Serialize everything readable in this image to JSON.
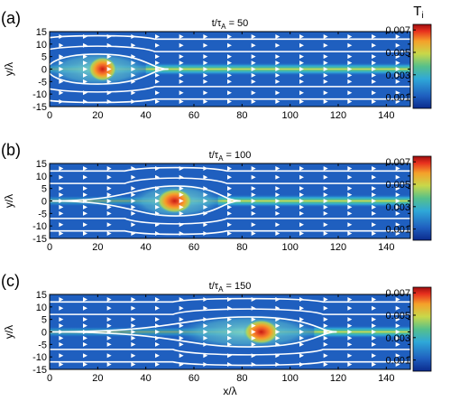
{
  "chart_data": [
    {
      "type": "heatmap",
      "panel_label": "(a)",
      "title_prefix": "t/",
      "title_tau": "τ",
      "title_sub": "A",
      "title_suffix": " = 50",
      "xlabel": "",
      "ylabel": "y/λ",
      "xlim": [
        0,
        150
      ],
      "ylim": [
        -15,
        15
      ],
      "xticks": [
        0,
        20,
        40,
        60,
        80,
        100,
        120,
        140
      ],
      "yticks": [
        15,
        10,
        5,
        0,
        -5,
        -10,
        -15
      ],
      "hot_spot": {
        "x": 22,
        "y": 0,
        "peak_Ti": 0.0065
      },
      "island_extent_x": [
        0,
        40
      ],
      "colorbar": {
        "label": "T",
        "label_sub": "i",
        "ticks": [
          "0.007",
          "0.005",
          "0.003",
          "0.001"
        ],
        "range": [
          0,
          0.0075
        ]
      }
    },
    {
      "type": "heatmap",
      "panel_label": "(b)",
      "title_prefix": "t/",
      "title_tau": "τ",
      "title_sub": "A",
      "title_suffix": " = 100",
      "xlabel": "",
      "ylabel": "y/λ",
      "xlim": [
        0,
        150
      ],
      "ylim": [
        -15,
        15
      ],
      "xticks": [
        0,
        20,
        40,
        60,
        80,
        100,
        120,
        140
      ],
      "yticks": [
        15,
        10,
        5,
        0,
        -5,
        -10,
        -15
      ],
      "hot_spot": {
        "x": 52,
        "y": 0,
        "peak_Ti": 0.007
      },
      "island_extent_x": [
        35,
        70
      ],
      "colorbar": {
        "label": "",
        "label_sub": "",
        "ticks": [
          "0.007",
          "0.005",
          "0.003",
          "0.001"
        ],
        "range": [
          0,
          0.0075
        ]
      }
    },
    {
      "type": "heatmap",
      "panel_label": "(c)",
      "title_prefix": "t/",
      "title_tau": "τ",
      "title_sub": "A",
      "title_suffix": " = 150",
      "xlabel": "x/λ",
      "ylabel": "y/λ",
      "xlim": [
        0,
        150
      ],
      "ylim": [
        -15,
        15
      ],
      "xticks": [
        0,
        20,
        40,
        60,
        80,
        100,
        120,
        140
      ],
      "yticks": [
        15,
        10,
        5,
        0,
        -5,
        -10,
        -15
      ],
      "hot_spot": {
        "x": 88,
        "y": 0,
        "peak_Ti": 0.007
      },
      "island_extent_x": [
        55,
        110
      ],
      "colorbar": {
        "label": "",
        "label_sub": "",
        "ticks": [
          "0.007",
          "0.005",
          "0.003",
          "0.001"
        ],
        "range": [
          0,
          0.0075
        ]
      }
    }
  ],
  "colors": {
    "background_field": "#1f5fbf",
    "sheet_core": "#f2e24a",
    "sheet_mid": "#56c08a",
    "hot": "#e8301e",
    "streamline": "#ffffff"
  }
}
